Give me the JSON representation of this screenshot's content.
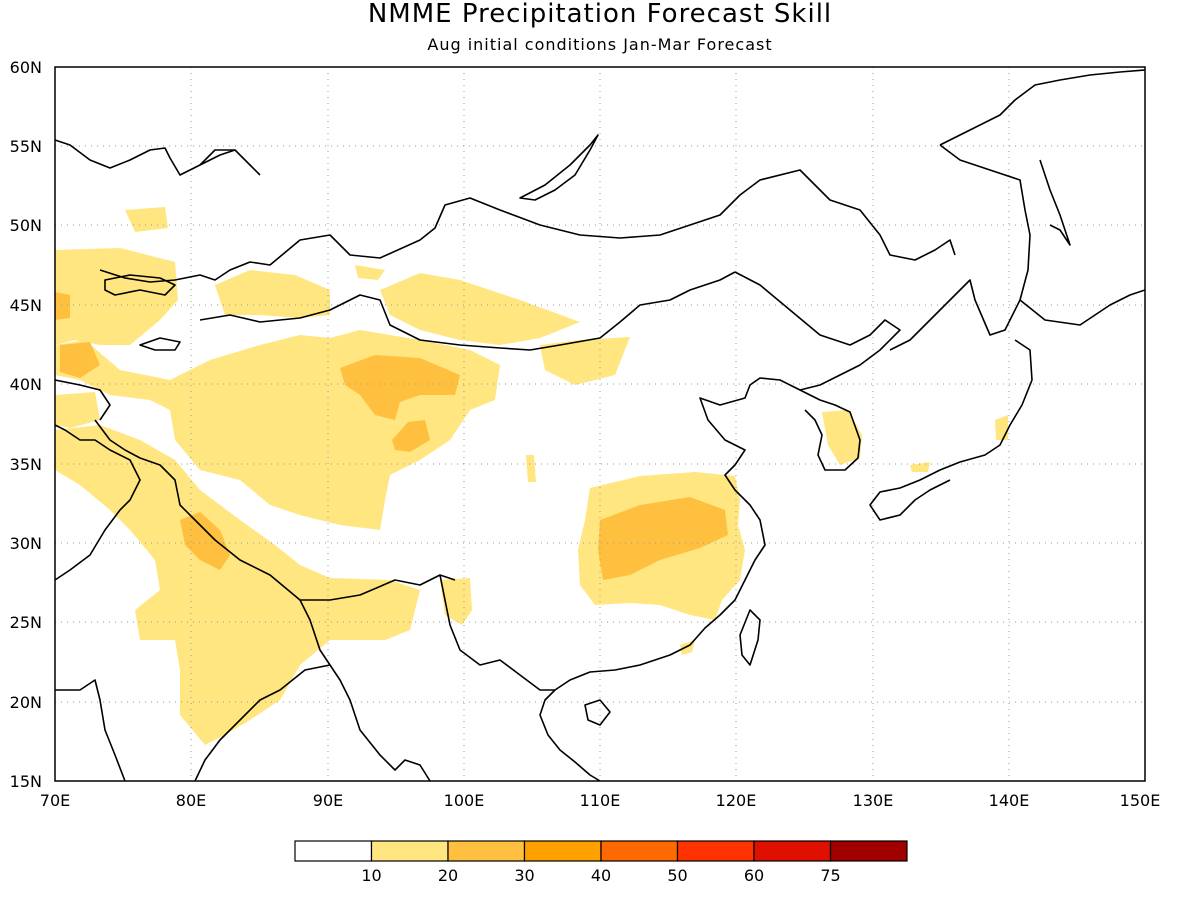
{
  "title": "NMME Precipitation Forecast Skill",
  "subtitle": "Aug initial conditions  Jan-Mar Forecast",
  "map": {
    "lon_range": [
      70,
      150
    ],
    "lat_range": [
      15,
      60
    ],
    "lon_ticks": [
      "70E",
      "80E",
      "90E",
      "100E",
      "110E",
      "120E",
      "130E",
      "140E",
      "150E"
    ],
    "lat_ticks": [
      "15N",
      "20N",
      "25N",
      "30N",
      "35N",
      "40N",
      "45N",
      "50N",
      "55N",
      "60N"
    ],
    "grid": "dotted"
  },
  "colorbar": {
    "labels": [
      "10",
      "20",
      "30",
      "40",
      "50",
      "60",
      "75"
    ],
    "colors": [
      "#ffffff",
      "#ffe680",
      "#ffc040",
      "#ffa000",
      "#ff6a00",
      "#ff3200",
      "#e01000",
      "#a00000"
    ]
  },
  "shading": {
    "level_10_20_color": "#ffe680",
    "level_20_30_color": "#ffc040"
  }
}
